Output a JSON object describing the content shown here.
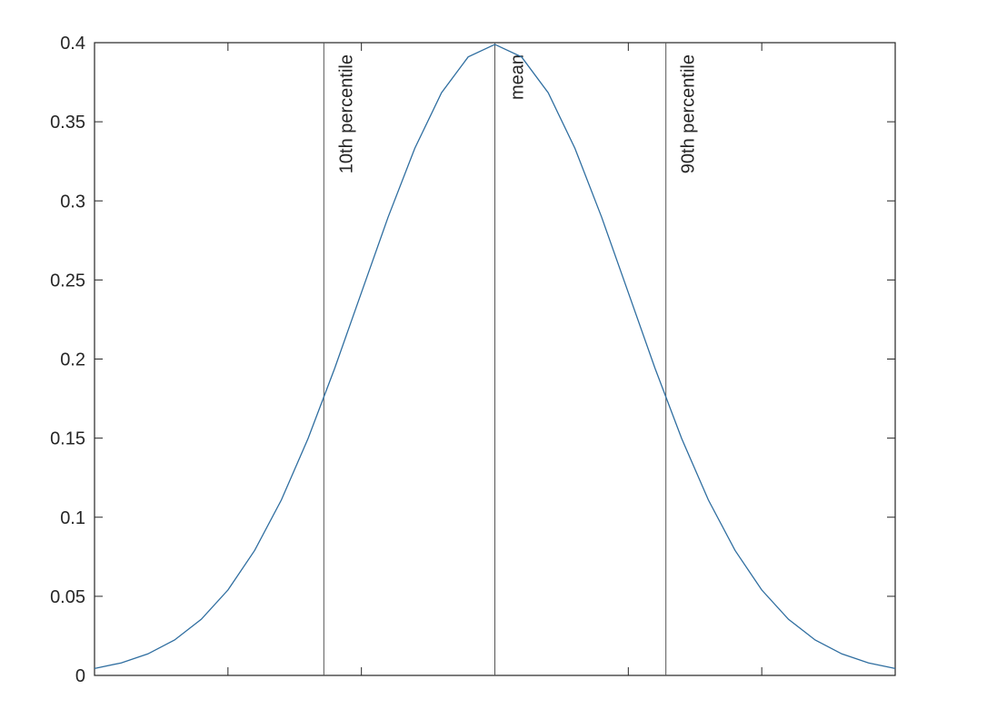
{
  "chart_data": {
    "type": "line",
    "x": [
      -3,
      -2.8,
      -2.6,
      -2.4,
      -2.2,
      -2,
      -1.8,
      -1.6,
      -1.4,
      -1.2,
      -1,
      -0.8,
      -0.6,
      -0.4,
      -0.2,
      0,
      0.2,
      0.4,
      0.6,
      0.8,
      1,
      1.2,
      1.4,
      1.6,
      1.8,
      2,
      2.2,
      2.4,
      2.6,
      2.8,
      3
    ],
    "series": [
      {
        "color": "#2f6ea0",
        "values": [
          0.0044,
          0.0079,
          0.0136,
          0.0224,
          0.0355,
          0.054,
          0.079,
          0.1109,
          0.1497,
          0.1942,
          0.242,
          0.2897,
          0.3332,
          0.3683,
          0.391,
          0.3989,
          0.391,
          0.3683,
          0.3332,
          0.2897,
          0.242,
          0.1942,
          0.1497,
          0.1109,
          0.079,
          0.054,
          0.0355,
          0.0224,
          0.0136,
          0.0079,
          0.0044
        ]
      }
    ],
    "vlines": [
      {
        "x": -1.2816,
        "label": "10th percentile"
      },
      {
        "x": 0,
        "label": "mean"
      },
      {
        "x": 1.2816,
        "label": "90th percentile"
      }
    ],
    "vline_color": "#555555",
    "xlim": [
      -3,
      3
    ],
    "xticks": [
      -2,
      -1,
      0,
      1,
      2
    ],
    "ylim": [
      0,
      0.4
    ],
    "yticks": [
      0,
      0.05,
      0.1,
      0.15,
      0.2,
      0.25,
      0.3,
      0.35,
      0.4
    ]
  }
}
